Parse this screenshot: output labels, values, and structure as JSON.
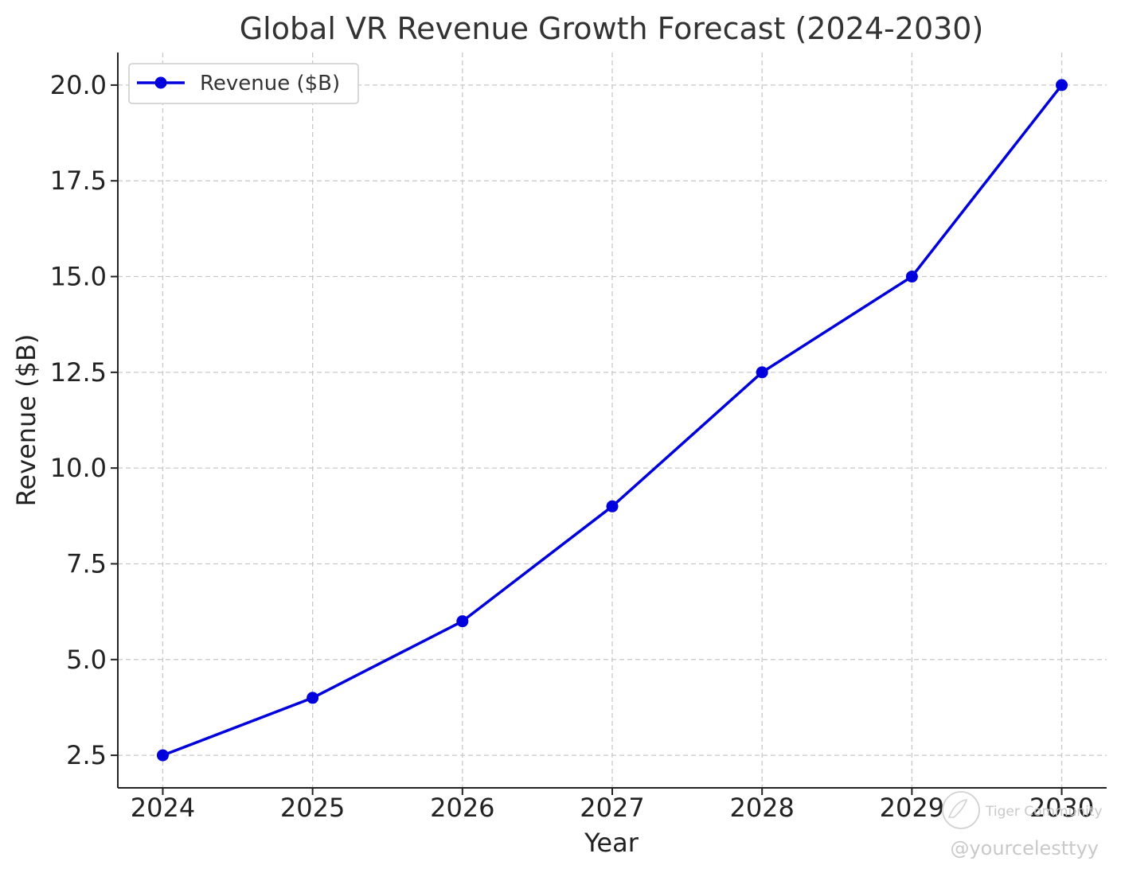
{
  "chart_data": {
    "type": "line",
    "title": "Global VR Revenue Growth Forecast (2024-2030)",
    "xlabel": "Year",
    "ylabel": "Revenue ($B)",
    "x": [
      "2024",
      "2025",
      "2026",
      "2027",
      "2028",
      "2029",
      "2030"
    ],
    "series": [
      {
        "name": "Revenue ($B)",
        "color": "#0000dd",
        "marker": "circle",
        "values": [
          2.5,
          4.0,
          6.0,
          9.0,
          12.5,
          15.0,
          20.0
        ]
      }
    ],
    "xlim": [
      2023.7,
      2030.3
    ],
    "ylim": [
      1.65,
      20.85
    ],
    "yticks": [
      "2.5",
      "5.0",
      "7.5",
      "10.0",
      "12.5",
      "15.0",
      "17.5",
      "20.0"
    ],
    "grid": true,
    "legend_position": "top-left"
  },
  "watermark": {
    "brand": "Tiger Community",
    "handle": "@yourcelesttyy"
  }
}
